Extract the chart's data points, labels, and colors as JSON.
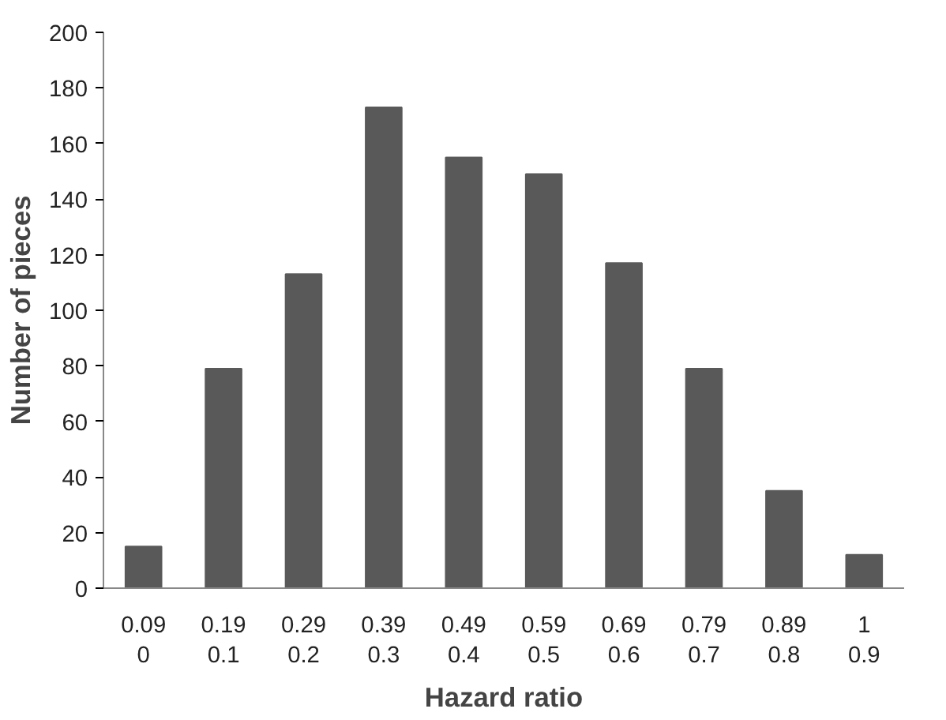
{
  "chart_data": {
    "type": "bar",
    "xlabel": "Hazard ratio",
    "ylabel": "Number of pieces",
    "categories": [
      "0.09\n0",
      "0.19\n0.1",
      "0.29\n0.2",
      "0.39\n0.3",
      "0.49\n0.4",
      "0.59\n0.5",
      "0.69\n0.6",
      "0.79\n0.7",
      "0.89\n0.8",
      "1\n0.9"
    ],
    "values": [
      15,
      79,
      113,
      173,
      155,
      149,
      117,
      79,
      35,
      12
    ],
    "color": "#595959",
    "ylim": [
      0,
      200
    ],
    "yticks": [
      0,
      20,
      40,
      60,
      80,
      100,
      120,
      140,
      160,
      180,
      200
    ],
    "grid": false
  }
}
